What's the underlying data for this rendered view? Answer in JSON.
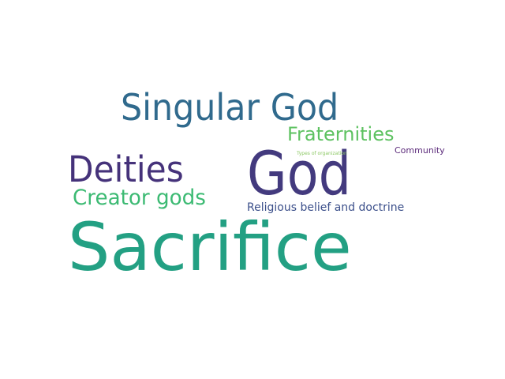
{
  "wordcloud": {
    "background_color": "#ffffff",
    "words": [
      {
        "text": "Sacrifice",
        "color": "#23a083",
        "rank": 1
      },
      {
        "text": "God",
        "color": "#433a7e",
        "rank": 2
      },
      {
        "text": "Singular God",
        "color": "#306a8d",
        "rank": 3
      },
      {
        "text": "Deities",
        "color": "#45327a",
        "rank": 4
      },
      {
        "text": "Creator gods",
        "color": "#3cba73",
        "rank": 5
      },
      {
        "text": "Fraternities",
        "color": "#5ec261",
        "rank": 6
      },
      {
        "text": "Religious belief and doctrine",
        "color": "#3b4f8a",
        "rank": 7
      },
      {
        "text": "Community",
        "color": "#5b2a7a",
        "rank": 8
      },
      {
        "text": "Types of organization",
        "color": "#8cc864",
        "rank": 9
      }
    ]
  }
}
